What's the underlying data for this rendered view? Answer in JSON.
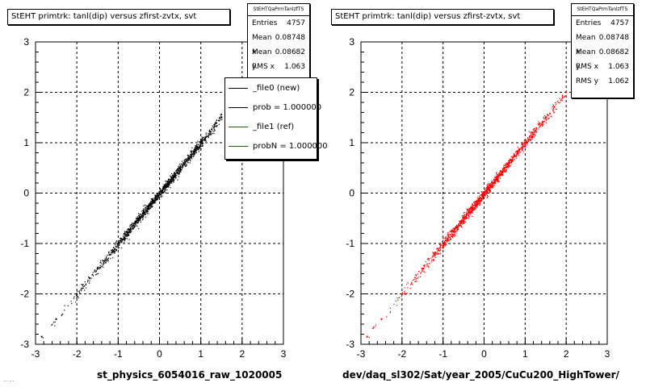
{
  "chart_data": [
    {
      "type": "scatter",
      "title": "StEHT primtrk: tanl(dip) versus zfirst-zvtx, svt",
      "xlabel": "st_physics_6054016_raw_1020005",
      "ylabel": "",
      "xlim": [
        -3,
        3
      ],
      "ylim": [
        -3,
        3
      ],
      "xticks": [
        "-3",
        "-2",
        "-1",
        "0",
        "1",
        "2",
        "3"
      ],
      "yticks": [
        "-3",
        "-2",
        "-1",
        "0",
        "1",
        "2",
        "3"
      ],
      "grid": true,
      "series": [
        {
          "color": "#000000",
          "x": [
            -2.85,
            -2.5,
            -2.0,
            -1.5,
            -1.0,
            -0.5,
            0.0,
            0.5,
            1.0,
            1.5
          ],
          "y": [
            -2.85,
            -2.5,
            -2.0,
            -1.5,
            -1.0,
            -0.5,
            0.0,
            0.5,
            1.0,
            1.5
          ]
        }
      ],
      "stats": {
        "name": "StEHTQaPrmTanlzfTS",
        "rows": [
          {
            "label": "Entries",
            "value": "4757"
          },
          {
            "label": "Mean x",
            "value": "0.08748"
          },
          {
            "label": "Mean y",
            "value": "0.08682"
          },
          {
            "label": "RMS x",
            "value": "1.063"
          }
        ]
      },
      "legend": {
        "position": "top-right",
        "entries": [
          {
            "label": "_file0 (new)",
            "color": "#000000"
          },
          {
            "label": "prob = 1.000000",
            "color": "#000000"
          },
          {
            "label": "_file1 (ref)",
            "color": "#cc0000"
          },
          {
            "label": "probN = 1.000000",
            "color": "#cc0000"
          }
        ]
      }
    },
    {
      "type": "scatter",
      "title": "StEHT primtrk: tanl(dip) versus zfirst-zvtx, svt",
      "xlabel": "dev/daq_sl302/Sat/year_2005/CuCu200_HighTower/",
      "ylabel": "",
      "xlim": [
        -3,
        3
      ],
      "ylim": [
        -3,
        3
      ],
      "xticks": [
        "-3",
        "-2",
        "-1",
        "0",
        "1",
        "2",
        "3"
      ],
      "yticks": [
        "-3",
        "-2",
        "-1",
        "0",
        "1",
        "2",
        "3"
      ],
      "grid": true,
      "series": [
        {
          "color": "#ff0000",
          "x": [
            -2.85,
            -2.5,
            -2.0,
            -1.5,
            -1.0,
            -0.5,
            0.0,
            0.5,
            1.0,
            1.5,
            2.0
          ],
          "y": [
            -2.85,
            -2.5,
            -2.0,
            -1.5,
            -1.0,
            -0.5,
            0.0,
            0.5,
            1.0,
            1.5,
            2.0
          ]
        }
      ],
      "stats": {
        "name": "StEHTQaPrmTanlzfTS",
        "rows": [
          {
            "label": "Entries",
            "value": "4757"
          },
          {
            "label": "Mean x",
            "value": "0.08748"
          },
          {
            "label": "Mean y",
            "value": "0.08682"
          },
          {
            "label": "RMS x",
            "value": "1.063"
          },
          {
            "label": "RMS y",
            "value": "1.062"
          }
        ]
      }
    }
  ],
  "footer_stub": "...  ..."
}
